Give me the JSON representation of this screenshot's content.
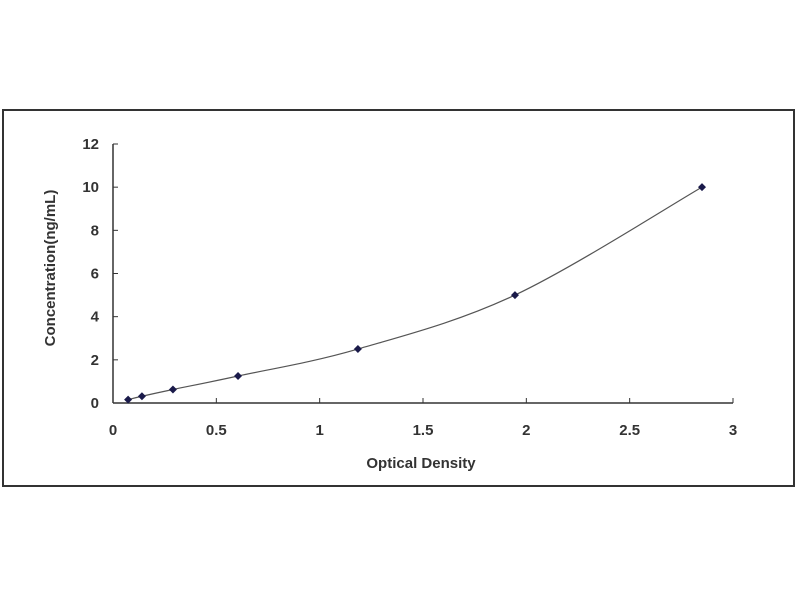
{
  "chart_data": {
    "type": "scatter",
    "xlabel": "Optical Density",
    "ylabel": "Concentration(ng/mL)",
    "xlim": [
      0,
      3
    ],
    "ylim": [
      0,
      12
    ],
    "xticks": [
      "0",
      "0.5",
      "1",
      "1.5",
      "2",
      "2.5",
      "3"
    ],
    "yticks": [
      "0",
      "2",
      "4",
      "6",
      "8",
      "10",
      "12"
    ],
    "grid": false,
    "fit_curve": true,
    "marker_color": "#1a1a4a",
    "line_color": "#555555",
    "series": [
      {
        "x": [
          0.073,
          0.14,
          0.29,
          0.605,
          1.185,
          1.945,
          2.85
        ],
        "y": [
          0.156,
          0.312,
          0.625,
          1.25,
          2.5,
          5,
          10
        ]
      }
    ]
  }
}
